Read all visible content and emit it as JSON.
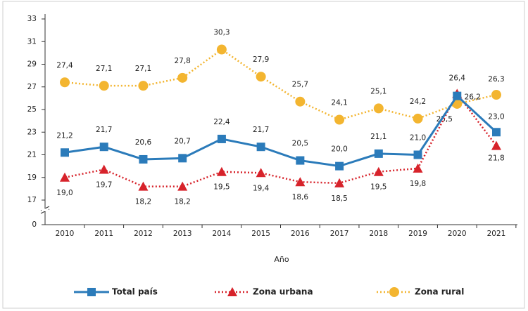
{
  "chart_data": {
    "type": "line",
    "x_label": "Año",
    "categories": [
      "2010",
      "2011",
      "2012",
      "2013",
      "2014",
      "2015",
      "2016",
      "2017",
      "2018",
      "2019",
      "2020",
      "2021"
    ],
    "series": [
      {
        "name": "Total país",
        "color": "#2b7bba",
        "style": "solid",
        "marker": "square",
        "values": [
          21.2,
          21.7,
          20.6,
          20.7,
          22.4,
          21.7,
          20.5,
          20.0,
          21.1,
          21.0,
          26.2,
          23.0
        ],
        "value_labels": [
          "21,2",
          "21,7",
          "20,6",
          "20,7",
          "22,4",
          "21,7",
          "20,5",
          "20,0",
          "21,1",
          "21,0",
          "26,2",
          "23,0"
        ]
      },
      {
        "name": "Zona urbana",
        "color": "#d7232b",
        "style": "dotted",
        "marker": "triangle",
        "values": [
          19.0,
          19.7,
          18.2,
          18.2,
          19.5,
          19.4,
          18.6,
          18.5,
          19.5,
          19.8,
          26.4,
          21.8
        ],
        "value_labels": [
          "19,0",
          "19,7",
          "18,2",
          "18,2",
          "19,5",
          "19,4",
          "18,6",
          "18,5",
          "19,5",
          "19,8",
          "26,4",
          "21,8"
        ]
      },
      {
        "name": "Zona rural",
        "color": "#f3b530",
        "style": "dotted",
        "marker": "circle",
        "values": [
          27.4,
          27.1,
          27.1,
          27.8,
          30.3,
          27.9,
          25.7,
          24.1,
          25.1,
          24.2,
          25.5,
          26.3
        ],
        "value_labels": [
          "27,4",
          "27,1",
          "27,1",
          "27,8",
          "30,3",
          "27,9",
          "25,7",
          "24,1",
          "25,1",
          "24,2",
          "25,5",
          "26,3"
        ]
      }
    ],
    "ylim": [
      0,
      33
    ],
    "yticks": [
      0,
      17,
      19,
      21,
      23,
      25,
      27,
      29,
      31,
      33
    ],
    "axis_break": [
      0,
      17
    ],
    "grid": false
  }
}
